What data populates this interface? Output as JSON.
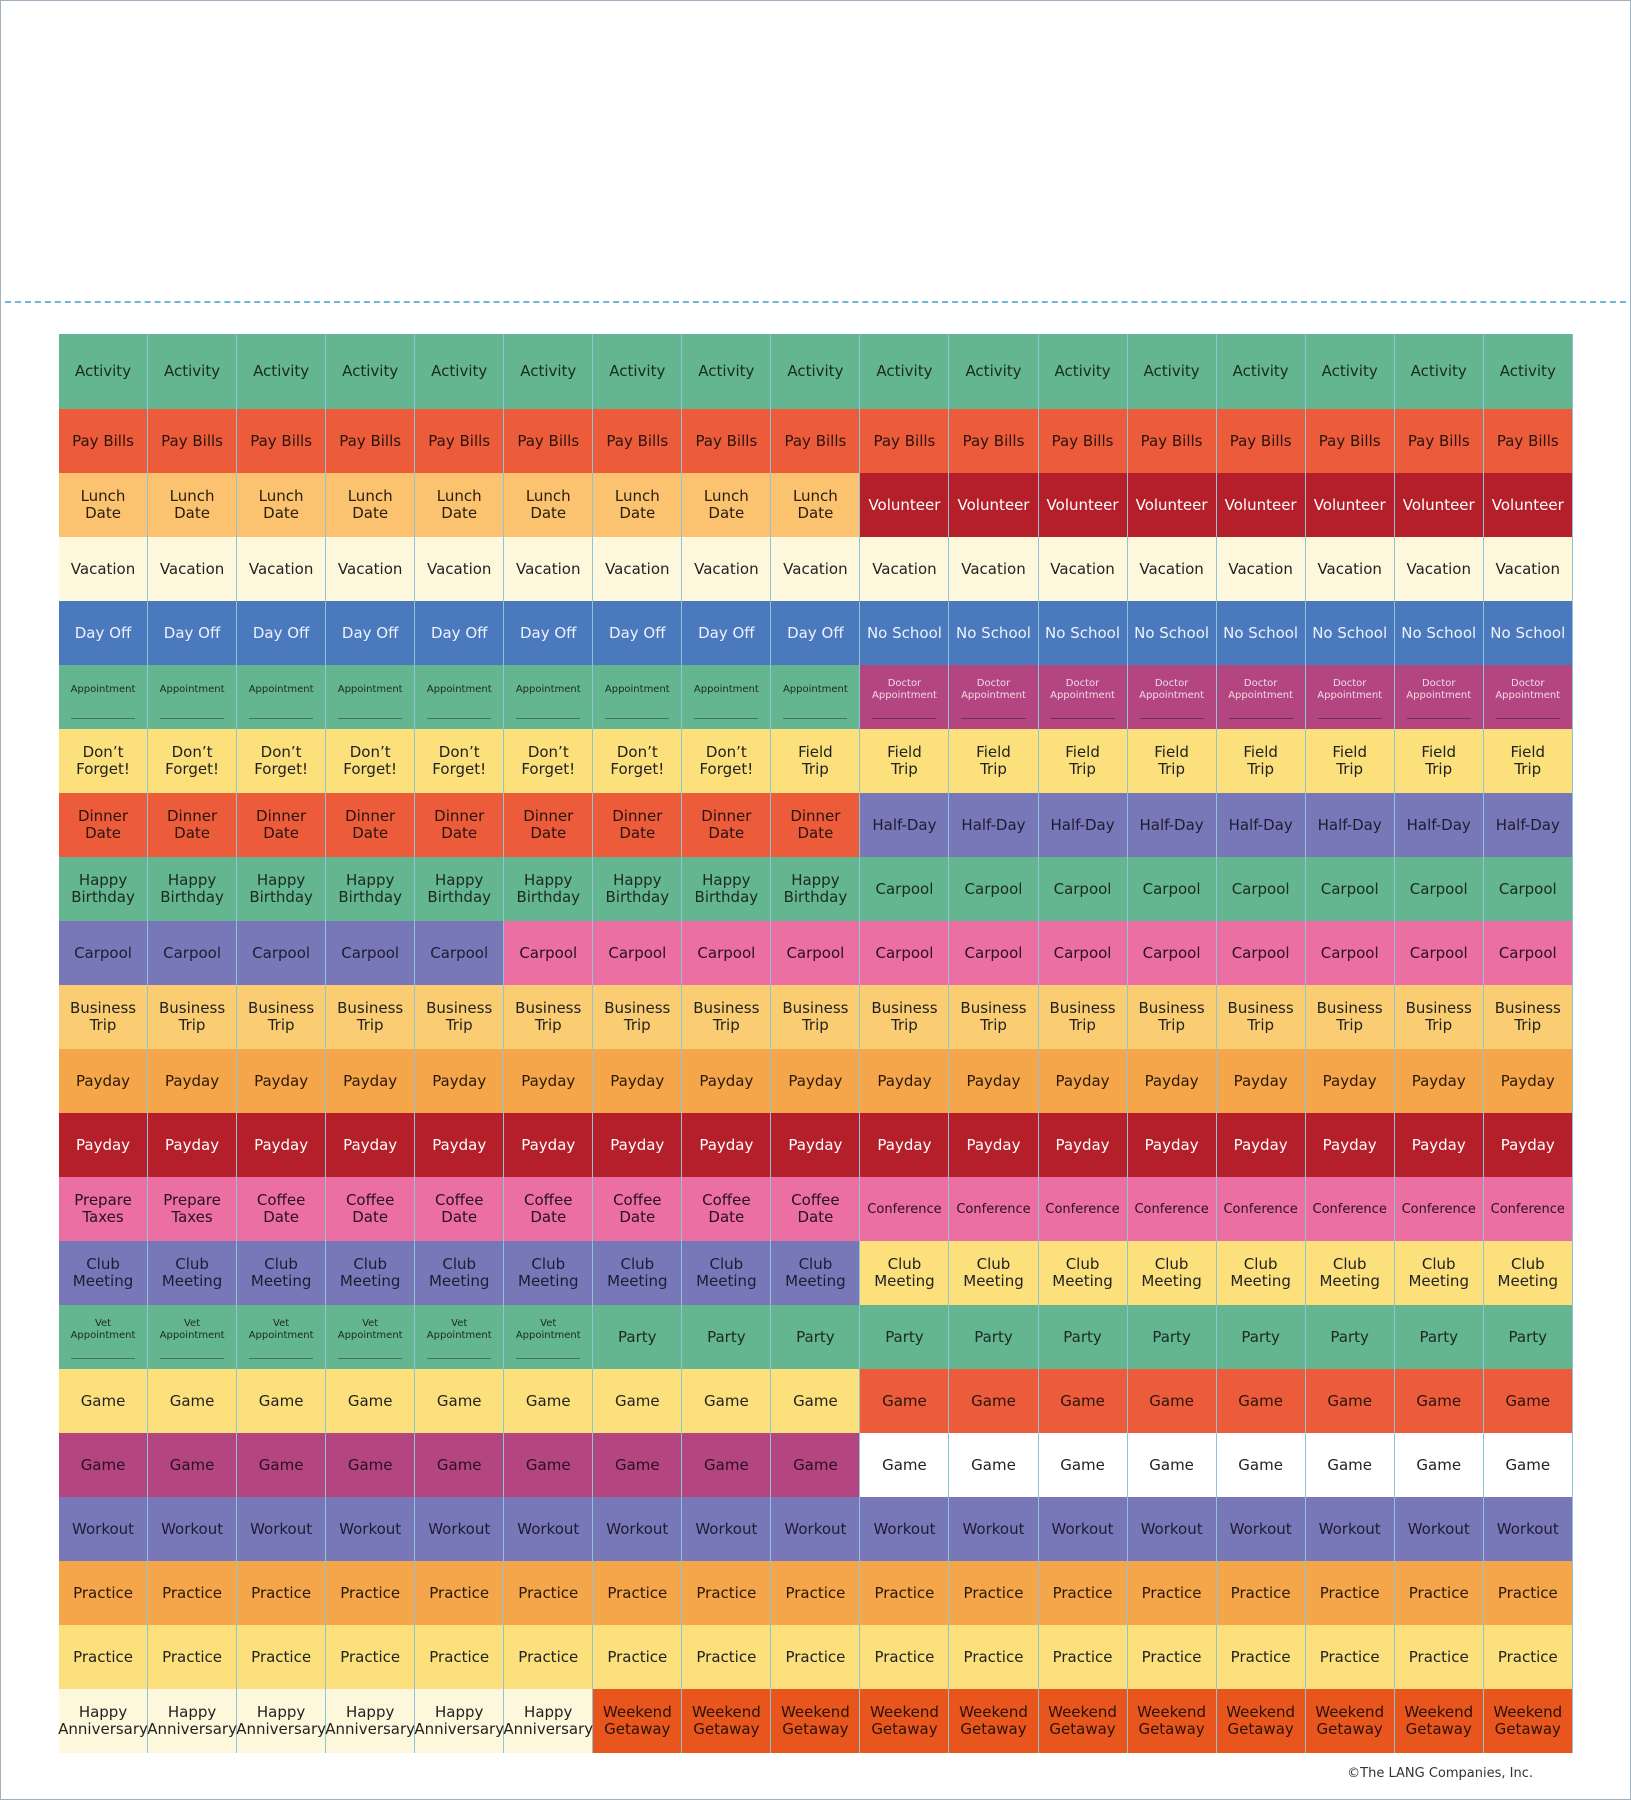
{
  "sheet": {
    "copyright": "©The LANG Companies, Inc.",
    "rows": [
      {
        "segments": [
          {
            "label": "Activity",
            "color": "#63b68f",
            "text_color": "#1c2a22",
            "count": 17
          }
        ]
      },
      {
        "segments": [
          {
            "label": "Pay Bills",
            "color": "#ec5b3a",
            "text_color": "#2a1410",
            "count": 17
          }
        ]
      },
      {
        "segments": [
          {
            "label": "Lunch\nDate",
            "color": "#fbc36f",
            "text_color": "#2a2010",
            "count": 9
          },
          {
            "label": "Volunteer",
            "color": "#b51f2a",
            "text_color": "#ffffff",
            "count": 8
          }
        ]
      },
      {
        "segments": [
          {
            "label": "Vacation",
            "color": "#fdf8dc",
            "text_color": "#222222",
            "count": 17
          }
        ]
      },
      {
        "segments": [
          {
            "label": "Day Off",
            "color": "#4a79bd",
            "text_color": "#eef2fa",
            "count": 9
          },
          {
            "label": "No School",
            "color": "#4a79bd",
            "text_color": "#eef2fa",
            "count": 8
          }
        ]
      },
      {
        "segments": [
          {
            "label": "Appointment",
            "color": "#63b68f",
            "text_color": "#1c2a22",
            "count": 9,
            "size": "small",
            "blank_line": true
          },
          {
            "label": "Doctor\nAppointment",
            "color": "#b34680",
            "text_color": "#f3d9e6",
            "count": 8,
            "size": "small",
            "blank_line": true
          }
        ]
      },
      {
        "segments": [
          {
            "label": "Don’t\nForget!",
            "color": "#fbe07c",
            "text_color": "#222222",
            "count": 8
          },
          {
            "label": "Field\nTrip",
            "color": "#fbe07c",
            "text_color": "#222222",
            "count": 9
          }
        ]
      },
      {
        "segments": [
          {
            "label": "Dinner\nDate",
            "color": "#ec5b3a",
            "text_color": "#2a1410",
            "count": 9
          },
          {
            "label": "Half-Day",
            "color": "#7878b8",
            "text_color": "#1c1c33",
            "count": 8
          }
        ]
      },
      {
        "segments": [
          {
            "label": "Happy\nBirthday",
            "color": "#63b68f",
            "text_color": "#1c2a22",
            "count": 9
          },
          {
            "label": "Carpool",
            "color": "#63b68f",
            "text_color": "#1c2a22",
            "count": 8
          }
        ]
      },
      {
        "segments": [
          {
            "label": "Carpool",
            "color": "#7878b8",
            "text_color": "#1c1c33",
            "count": 5
          },
          {
            "label": "Carpool",
            "color": "#ec6fa3",
            "text_color": "#2a1020",
            "count": 12
          }
        ]
      },
      {
        "segments": [
          {
            "label": "Business\nTrip",
            "color": "#fbcd72",
            "text_color": "#222222",
            "count": 17
          }
        ]
      },
      {
        "segments": [
          {
            "label": "Payday",
            "color": "#f5a54a",
            "text_color": "#2a1a08",
            "count": 17
          }
        ]
      },
      {
        "segments": [
          {
            "label": "Payday",
            "color": "#b51f2a",
            "text_color": "#ffffff",
            "count": 17
          }
        ]
      },
      {
        "segments": [
          {
            "label": "Prepare\nTaxes",
            "color": "#ec6fa3",
            "text_color": "#2a1020",
            "count": 2
          },
          {
            "label": "Coffee\nDate",
            "color": "#ec6fa3",
            "text_color": "#2a1020",
            "count": 7
          },
          {
            "label": "Conference",
            "color": "#ec6fa3",
            "text_color": "#2a1020",
            "count": 8,
            "size": "medium"
          }
        ]
      },
      {
        "segments": [
          {
            "label": "Club\nMeeting",
            "color": "#7878b8",
            "text_color": "#1c1c33",
            "count": 9
          },
          {
            "label": "Club\nMeeting",
            "color": "#fbe07c",
            "text_color": "#222222",
            "count": 8
          }
        ]
      },
      {
        "segments": [
          {
            "label": "Vet\nAppointment",
            "color": "#63b68f",
            "text_color": "#1c2a22",
            "count": 6,
            "size": "small",
            "blank_line": true
          },
          {
            "label": "Party",
            "color": "#63b68f",
            "text_color": "#1c2a22",
            "count": 11
          }
        ]
      },
      {
        "segments": [
          {
            "label": "Game",
            "color": "#fbe07c",
            "text_color": "#222222",
            "count": 9
          },
          {
            "label": "Game",
            "color": "#ec5b3a",
            "text_color": "#2a1410",
            "count": 8
          }
        ]
      },
      {
        "segments": [
          {
            "label": "Game",
            "color": "#b34680",
            "text_color": "#2a0f1e",
            "count": 9
          },
          {
            "label": "Game",
            "color": "#ffffff",
            "text_color": "#222222",
            "count": 8
          }
        ]
      },
      {
        "segments": [
          {
            "label": "Workout",
            "color": "#7878b8",
            "text_color": "#1c1c33",
            "count": 17
          }
        ]
      },
      {
        "segments": [
          {
            "label": "Practice",
            "color": "#f5a54a",
            "text_color": "#2a1a08",
            "count": 17
          }
        ]
      },
      {
        "segments": [
          {
            "label": "Practice",
            "color": "#fbe07c",
            "text_color": "#222222",
            "count": 17
          }
        ]
      },
      {
        "segments": [
          {
            "label": "Happy\nAnniversary",
            "color": "#fdf8dc",
            "text_color": "#222222",
            "count": 6
          },
          {
            "label": "Weekend\nGetaway",
            "color": "#e8561d",
            "text_color": "#2a1208",
            "count": 11
          }
        ]
      }
    ]
  }
}
